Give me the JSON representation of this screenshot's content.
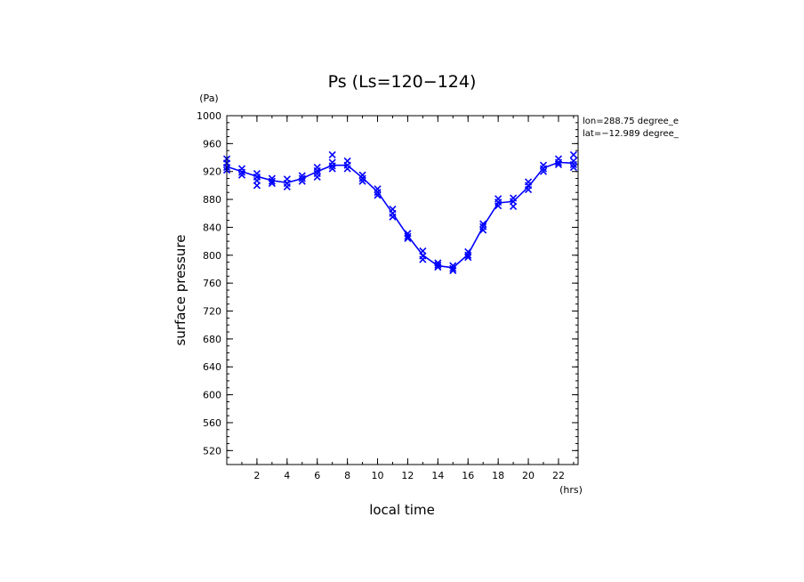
{
  "chart_data": {
    "type": "line",
    "title": "Ps (Ls=120−124)",
    "xlabel": "local time",
    "ylabel": "surface pressure",
    "x_unit": "(hrs)",
    "y_unit": "(Pa)",
    "xlim": [
      0,
      23.3
    ],
    "ylim": [
      500,
      1000
    ],
    "x_ticks": [
      2,
      4,
      6,
      8,
      10,
      12,
      14,
      16,
      18,
      20,
      22
    ],
    "y_ticks": [
      520,
      560,
      600,
      640,
      680,
      720,
      760,
      800,
      840,
      880,
      920,
      960,
      1000
    ],
    "annotations": [
      "lon=288.75 degree_e",
      "lat=−12.989 degree_"
    ],
    "line_color": "#0000ff",
    "series": [
      {
        "type": "line",
        "x": [
          0,
          1,
          2,
          3,
          4,
          5,
          6,
          7,
          8,
          9,
          10,
          11,
          12,
          13,
          14,
          15,
          16,
          17,
          18,
          19,
          20,
          21,
          22,
          23
        ],
        "values": [
          927,
          920,
          913,
          907,
          904,
          910,
          920,
          929,
          929,
          911,
          891,
          860,
          828,
          800,
          785,
          782,
          801,
          841,
          875,
          877,
          898,
          925,
          933,
          932
        ]
      },
      {
        "type": "scatter",
        "marker": "x",
        "x": [
          0,
          0,
          0,
          0,
          1,
          1,
          1,
          2,
          2,
          2,
          2,
          3,
          3,
          3,
          4,
          4,
          4,
          5,
          5,
          5,
          6,
          6,
          6,
          6,
          7,
          7,
          7,
          7,
          8,
          8,
          8,
          9,
          9,
          9,
          10,
          10,
          10,
          11,
          11,
          11,
          12,
          12,
          12,
          13,
          13,
          13,
          14,
          14,
          14,
          15,
          15,
          15,
          16,
          16,
          16,
          17,
          17,
          17,
          18,
          18,
          18,
          19,
          19,
          19,
          20,
          20,
          20,
          21,
          21,
          21,
          22,
          22,
          22,
          23,
          23,
          23,
          23
        ],
        "values": [
          938,
          932,
          926,
          922,
          924,
          919,
          915,
          917,
          912,
          907,
          900,
          910,
          906,
          903,
          909,
          903,
          898,
          914,
          910,
          906,
          926,
          921,
          917,
          912,
          944,
          933,
          928,
          924,
          935,
          929,
          924,
          915,
          910,
          906,
          895,
          890,
          886,
          866,
          860,
          855,
          831,
          827,
          824,
          806,
          799,
          794,
          789,
          786,
          783,
          785,
          781,
          778,
          805,
          800,
          797,
          845,
          841,
          836,
          881,
          876,
          871,
          882,
          877,
          870,
          905,
          900,
          894,
          929,
          924,
          920,
          938,
          933,
          930,
          944,
          935,
          930,
          926
        ]
      }
    ]
  }
}
